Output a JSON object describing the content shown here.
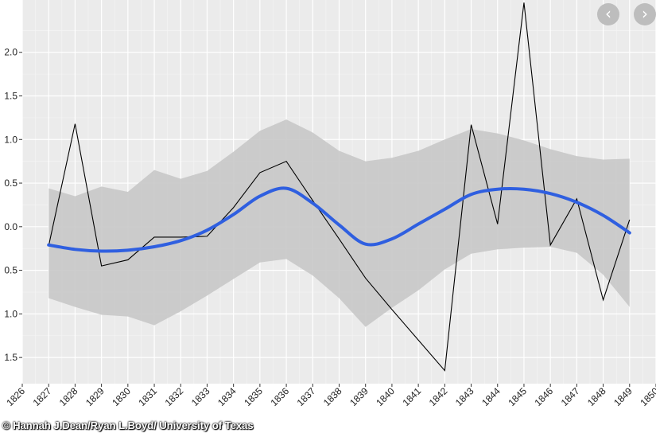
{
  "chart_data": {
    "type": "line",
    "title": "",
    "xlabel": "",
    "ylabel": "",
    "x": [
      1827,
      1828,
      1829,
      1830,
      1831,
      1832,
      1833,
      1834,
      1835,
      1836,
      1837,
      1838,
      1839,
      1840,
      1841,
      1842,
      1843,
      1844,
      1845,
      1846,
      1847,
      1848,
      1849
    ],
    "xlim": [
      1826,
      1850
    ],
    "x_ticks": [
      "1826",
      "1827",
      "1828",
      "1829",
      "1830",
      "1831",
      "1832",
      "1833",
      "1834",
      "1835",
      "1836",
      "1837",
      "1838",
      "1839",
      "1840",
      "1841",
      "1842",
      "1843",
      "1844",
      "1845",
      "1846",
      "1847",
      "1848",
      "1849",
      "1850"
    ],
    "ylim": [
      -1.8,
      2.6
    ],
    "y_ticks": [
      {
        "value": 2.0,
        "label": "2.0"
      },
      {
        "value": 1.5,
        "label": "1.5"
      },
      {
        "value": 1.0,
        "label": "1.0"
      },
      {
        "value": 0.5,
        "label": "0.5"
      },
      {
        "value": 0.0,
        "label": "0.0"
      },
      {
        "value": -0.5,
        "label": "0.5"
      },
      {
        "value": -1.0,
        "label": "1.0"
      },
      {
        "value": -1.5,
        "label": "1.5"
      }
    ],
    "grid": true,
    "series": [
      {
        "kind": "raw",
        "values": [
          -0.22,
          1.18,
          -0.45,
          -0.38,
          -0.12,
          -0.12,
          -0.11,
          0.22,
          0.62,
          0.75,
          0.3,
          -0.14,
          -0.59,
          -0.95,
          -1.3,
          -1.65,
          1.17,
          0.03,
          2.57,
          -0.21,
          0.32,
          -0.84,
          0.08
        ],
        "color": "#000000"
      },
      {
        "kind": "smooth",
        "values": [
          -0.21,
          -0.26,
          -0.28,
          -0.27,
          -0.23,
          -0.16,
          -0.04,
          0.14,
          0.35,
          0.44,
          0.27,
          0.02,
          -0.2,
          -0.14,
          0.03,
          0.2,
          0.37,
          0.43,
          0.43,
          0.38,
          0.28,
          0.13,
          -0.07
        ],
        "lower": [
          -0.82,
          -0.92,
          -1.01,
          -1.03,
          -1.13,
          -0.97,
          -0.79,
          -0.6,
          -0.41,
          -0.37,
          -0.56,
          -0.82,
          -1.15,
          -0.93,
          -0.73,
          -0.49,
          -0.31,
          -0.26,
          -0.24,
          -0.23,
          -0.3,
          -0.55,
          -0.92
        ],
        "upper": [
          0.44,
          0.35,
          0.46,
          0.4,
          0.65,
          0.55,
          0.64,
          0.86,
          1.1,
          1.23,
          1.08,
          0.87,
          0.75,
          0.79,
          0.87,
          1.0,
          1.12,
          1.07,
          0.99,
          0.89,
          0.81,
          0.77,
          0.78
        ],
        "color": "#2f5fe0",
        "band_color": "#c8c8c8"
      }
    ]
  },
  "ui": {
    "prev_symbol": "‹",
    "next_symbol": "›",
    "credit": "© Hannah J.Dean/Ryan L.Boyd/ University of Texas"
  }
}
